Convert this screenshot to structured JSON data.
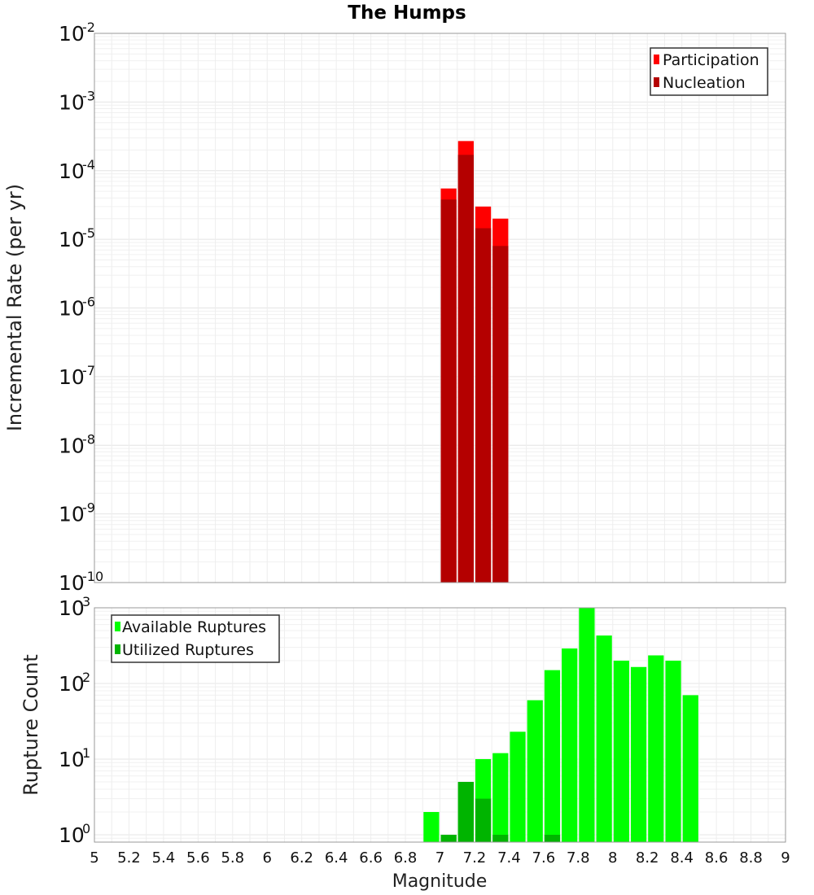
{
  "chart_data": [
    {
      "type": "bar",
      "title": "The Humps",
      "xlabel": "Magnitude",
      "ylabel": "Incremental Rate (per yr)",
      "yscale": "log",
      "ylim": [
        1e-10,
        0.01
      ],
      "xlim": [
        5,
        9
      ],
      "bin_width": 0.1,
      "x_ticks": [
        "5",
        "5.2",
        "5.4",
        "5.6",
        "5.8",
        "6",
        "6.2",
        "6.4",
        "6.6",
        "6.8",
        "7",
        "7.2",
        "7.4",
        "7.6",
        "7.8",
        "8",
        "8.2",
        "8.4",
        "8.6",
        "8.8",
        "9"
      ],
      "y_ticks": [
        {
          "base": "10",
          "exp": "-2",
          "value": 0.01
        },
        {
          "base": "10",
          "exp": "-3",
          "value": 0.001
        },
        {
          "base": "10",
          "exp": "-4",
          "value": 0.0001
        },
        {
          "base": "10",
          "exp": "-5",
          "value": 1e-05
        },
        {
          "base": "10",
          "exp": "-6",
          "value": 1e-06
        },
        {
          "base": "10",
          "exp": "-7",
          "value": 1e-07
        },
        {
          "base": "10",
          "exp": "-8",
          "value": 1e-08
        },
        {
          "base": "10",
          "exp": "-9",
          "value": 1e-09
        },
        {
          "base": "10",
          "exp": "-10",
          "value": 1e-10
        }
      ],
      "legend_position": "top-right",
      "series": [
        {
          "name": "Participation",
          "color": "#ff0000",
          "x": [
            7.05,
            7.15,
            7.25,
            7.35
          ],
          "values": [
            5.5e-05,
            0.00027,
            3e-05,
            2e-05
          ]
        },
        {
          "name": "Nucleation",
          "color": "#b40000",
          "x": [
            7.05,
            7.15,
            7.25,
            7.35
          ],
          "values": [
            3.8e-05,
            0.00017,
            1.45e-05,
            8e-06
          ]
        }
      ]
    },
    {
      "type": "bar",
      "xlabel": "Magnitude",
      "ylabel": "Rupture Count",
      "yscale": "log",
      "ylim": [
        0.8,
        1000
      ],
      "xlim": [
        5,
        9
      ],
      "bin_width": 0.1,
      "y_ticks": [
        {
          "base": "10",
          "exp": "3",
          "value": 1000
        },
        {
          "base": "10",
          "exp": "2",
          "value": 100
        },
        {
          "base": "10",
          "exp": "1",
          "value": 10
        },
        {
          "base": "10",
          "exp": "0",
          "value": 1
        }
      ],
      "legend_position": "top-left",
      "series": [
        {
          "name": "Available Ruptures",
          "color": "#00ff00",
          "x": [
            6.95,
            7.05,
            7.15,
            7.25,
            7.35,
            7.45,
            7.55,
            7.65,
            7.75,
            7.85,
            7.95,
            8.05,
            8.15,
            8.25,
            8.35,
            8.45
          ],
          "values": [
            2,
            1,
            5,
            10,
            12,
            23,
            60,
            150,
            290,
            1000,
            430,
            200,
            165,
            235,
            200,
            70
          ]
        },
        {
          "name": "Utilized Ruptures",
          "color": "#00b400",
          "x": [
            7.05,
            7.15,
            7.25,
            7.35,
            7.65
          ],
          "values": [
            1,
            5,
            3,
            1,
            1
          ]
        }
      ]
    }
  ]
}
